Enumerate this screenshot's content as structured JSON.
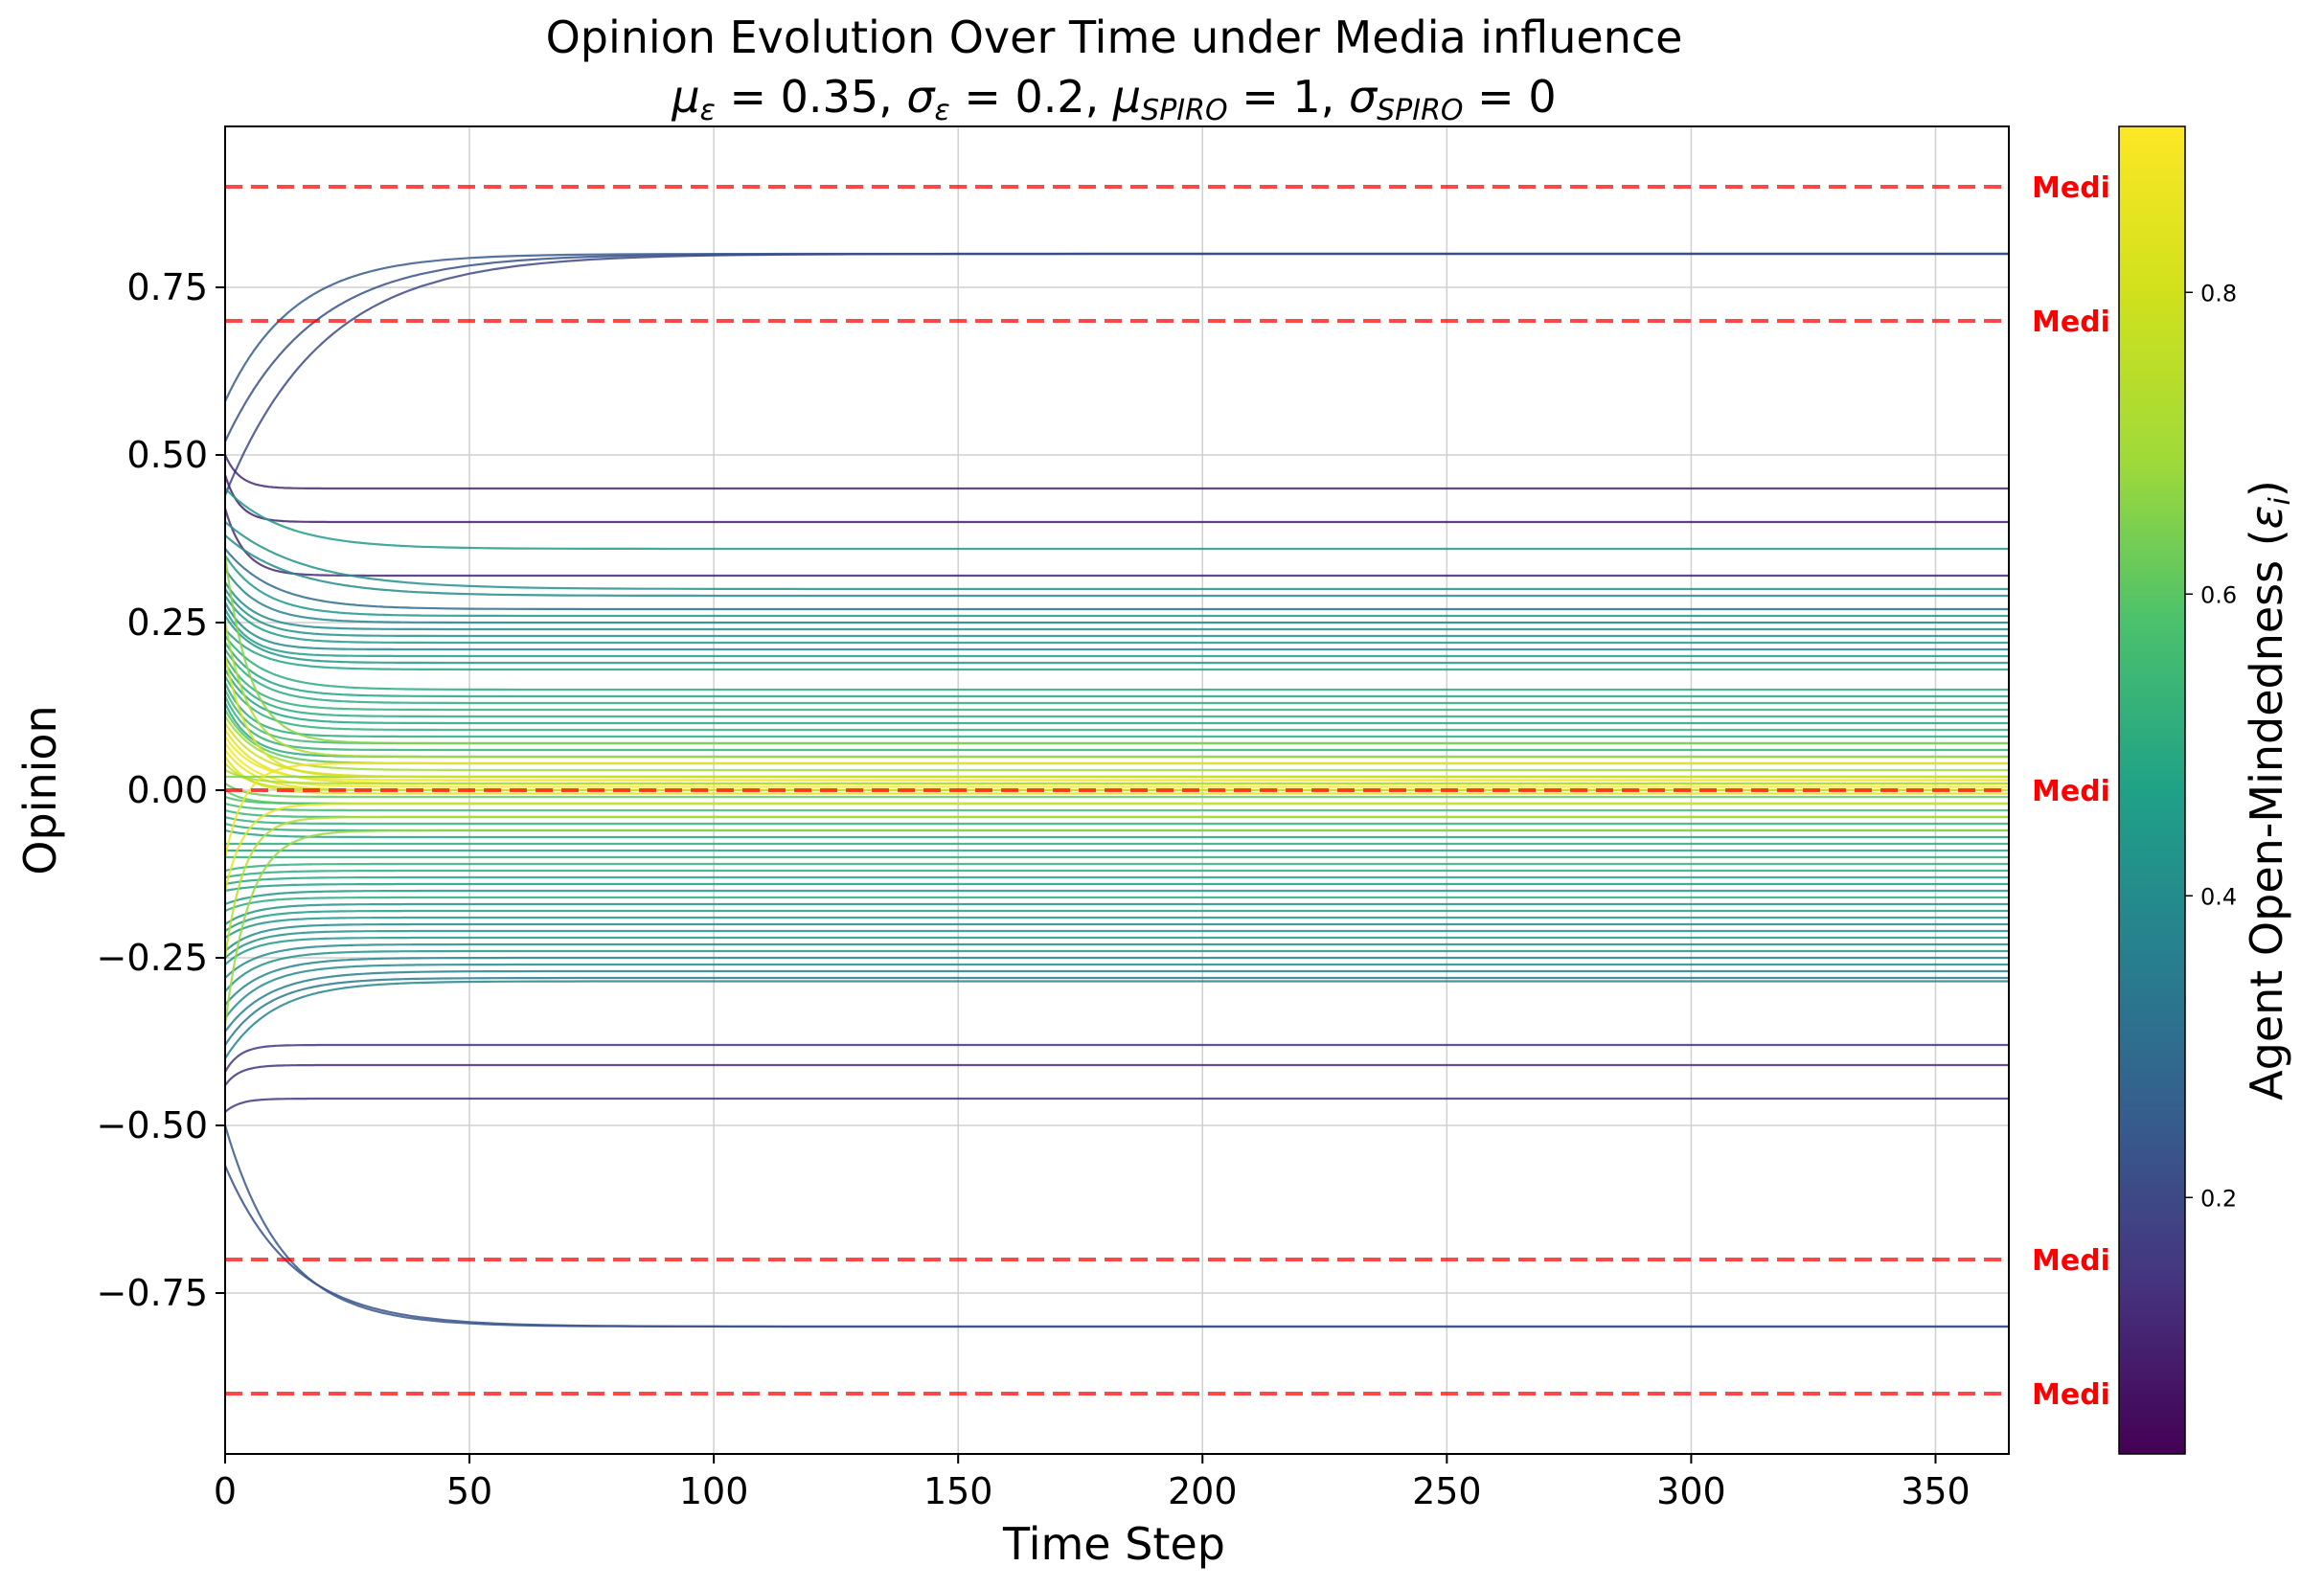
{
  "chart_data": {
    "type": "line",
    "title": "Opinion Evolution Over Time under Media influence",
    "subtitle": {
      "mu_eps_sym": "μ",
      "mu_eps_sub": "ε",
      "mu_eps_val": " = 0.35, ",
      "sigma_eps_sym": "σ",
      "sigma_eps_sub": "ε",
      "sigma_eps_val": " = 0.2, ",
      "mu_spiro_sym": "μ",
      "mu_spiro_sub": "SPIRO",
      "mu_spiro_val": " = 1, ",
      "sigma_spiro_sym": "σ",
      "sigma_spiro_sub": "SPIRO",
      "sigma_spiro_val": " = 0"
    },
    "xlabel": "Time Step",
    "ylabel": "Opinion",
    "xlim": [
      0,
      365
    ],
    "ylim": [
      -0.99,
      0.99
    ],
    "xticks": [
      0,
      50,
      100,
      150,
      200,
      250,
      300,
      350
    ],
    "yticks": [
      -0.75,
      -0.5,
      -0.25,
      0.0,
      0.25,
      0.5,
      0.75
    ],
    "ytick_labels": [
      "−0.75",
      "−0.50",
      "−0.25",
      "0.00",
      "0.25",
      "0.50",
      "0.75"
    ],
    "grid": true,
    "media_lines": [
      {
        "y": 0.9,
        "label": "Medi"
      },
      {
        "y": 0.7,
        "label": "Medi"
      },
      {
        "y": 0.0,
        "label": "Medi"
      },
      {
        "y": -0.7,
        "label": "Medi"
      },
      {
        "y": -0.9,
        "label": "Medi"
      }
    ],
    "media_color": "#ff0000",
    "colorbar": {
      "label_main": "Agent Open-Mindedness (",
      "label_sym": "ε",
      "label_sub": "i",
      "label_close": ")",
      "range": [
        0.03,
        0.91
      ],
      "ticks": [
        0.2,
        0.4,
        0.6,
        0.8
      ],
      "tick_labels": [
        "0.2",
        "0.4",
        "0.6",
        "0.8"
      ],
      "colormap": "viridis"
    },
    "series": [
      {
        "start": 0.52,
        "final": 0.8,
        "eps": 0.22,
        "tau": 18
      },
      {
        "start": 0.58,
        "final": 0.8,
        "eps": 0.25,
        "tau": 14
      },
      {
        "start": 0.44,
        "final": 0.8,
        "eps": 0.2,
        "tau": 20
      },
      {
        "start": 0.5,
        "final": 0.45,
        "eps": 0.12,
        "tau": 3
      },
      {
        "start": 0.47,
        "final": 0.4,
        "eps": 0.1,
        "tau": 3
      },
      {
        "start": 0.45,
        "final": 0.36,
        "eps": 0.45,
        "tau": 12
      },
      {
        "start": 0.42,
        "final": 0.32,
        "eps": 0.12,
        "tau": 4
      },
      {
        "start": 0.4,
        "final": 0.3,
        "eps": 0.42,
        "tau": 16
      },
      {
        "start": 0.38,
        "final": 0.29,
        "eps": 0.4,
        "tau": 14
      },
      {
        "start": 0.36,
        "final": 0.27,
        "eps": 0.3,
        "tau": 10
      },
      {
        "start": 0.35,
        "final": 0.26,
        "eps": 0.44,
        "tau": 8
      },
      {
        "start": 0.33,
        "final": 0.25,
        "eps": 0.38,
        "tau": 7
      },
      {
        "start": 0.31,
        "final": 0.24,
        "eps": 0.4,
        "tau": 6
      },
      {
        "start": 0.3,
        "final": 0.23,
        "eps": 0.42,
        "tau": 6
      },
      {
        "start": 0.29,
        "final": 0.22,
        "eps": 0.45,
        "tau": 6
      },
      {
        "start": 0.28,
        "final": 0.21,
        "eps": 0.4,
        "tau": 5
      },
      {
        "start": 0.27,
        "final": 0.2,
        "eps": 0.46,
        "tau": 5
      },
      {
        "start": 0.26,
        "final": 0.19,
        "eps": 0.44,
        "tau": 6
      },
      {
        "start": 0.24,
        "final": 0.18,
        "eps": 0.48,
        "tau": 7
      },
      {
        "start": 0.23,
        "final": 0.15,
        "eps": 0.5,
        "tau": 8
      },
      {
        "start": 0.22,
        "final": 0.14,
        "eps": 0.48,
        "tau": 7
      },
      {
        "start": 0.21,
        "final": 0.13,
        "eps": 0.5,
        "tau": 7
      },
      {
        "start": 0.2,
        "final": 0.12,
        "eps": 0.52,
        "tau": 6
      },
      {
        "start": 0.19,
        "final": 0.11,
        "eps": 0.5,
        "tau": 6
      },
      {
        "start": 0.18,
        "final": 0.1,
        "eps": 0.48,
        "tau": 6
      },
      {
        "start": 0.17,
        "final": 0.09,
        "eps": 0.52,
        "tau": 6
      },
      {
        "start": 0.16,
        "final": 0.08,
        "eps": 0.5,
        "tau": 5
      },
      {
        "start": 0.15,
        "final": 0.07,
        "eps": 0.55,
        "tau": 5
      },
      {
        "start": 0.14,
        "final": 0.06,
        "eps": 0.52,
        "tau": 5
      },
      {
        "start": 0.13,
        "final": 0.05,
        "eps": 0.5,
        "tau": 5
      },
      {
        "start": 0.12,
        "final": 0.04,
        "eps": 0.6,
        "tau": 6
      },
      {
        "start": 0.11,
        "final": 0.03,
        "eps": 0.7,
        "tau": 7
      },
      {
        "start": 0.1,
        "final": 0.02,
        "eps": 0.8,
        "tau": 7
      },
      {
        "start": 0.09,
        "final": 0.01,
        "eps": 0.85,
        "tau": 7
      },
      {
        "start": 0.08,
        "final": 0.015,
        "eps": 0.88,
        "tau": 6
      },
      {
        "start": 0.07,
        "final": 0.005,
        "eps": 0.9,
        "tau": 6
      },
      {
        "start": 0.06,
        "final": 0.0,
        "eps": 0.86,
        "tau": 6
      },
      {
        "start": 0.05,
        "final": -0.005,
        "eps": 0.84,
        "tau": 5
      },
      {
        "start": 0.04,
        "final": 0.0,
        "eps": 0.78,
        "tau": 5
      },
      {
        "start": 0.03,
        "final": 0.01,
        "eps": 0.72,
        "tau": 5
      },
      {
        "start": 0.02,
        "final": 0.02,
        "eps": 0.65,
        "tau": 4
      },
      {
        "start": 0.01,
        "final": -0.01,
        "eps": 0.62,
        "tau": 4
      },
      {
        "start": 0.0,
        "final": -0.02,
        "eps": 0.6,
        "tau": 4
      },
      {
        "start": -0.01,
        "final": -0.02,
        "eps": 0.58,
        "tau": 4
      },
      {
        "start": -0.02,
        "final": -0.03,
        "eps": 0.56,
        "tau": 5
      },
      {
        "start": -0.03,
        "final": -0.04,
        "eps": 0.54,
        "tau": 5
      },
      {
        "start": -0.04,
        "final": -0.05,
        "eps": 0.52,
        "tau": 5
      },
      {
        "start": -0.05,
        "final": -0.06,
        "eps": 0.5,
        "tau": 5
      },
      {
        "start": -0.06,
        "final": -0.07,
        "eps": 0.48,
        "tau": 6
      },
      {
        "start": -0.08,
        "final": -0.08,
        "eps": 0.5,
        "tau": 6
      },
      {
        "start": -0.09,
        "final": -0.09,
        "eps": 0.48,
        "tau": 6
      },
      {
        "start": -0.1,
        "final": -0.1,
        "eps": 0.5,
        "tau": 6
      },
      {
        "start": -0.12,
        "final": -0.11,
        "eps": 0.52,
        "tau": 6
      },
      {
        "start": -0.13,
        "final": -0.12,
        "eps": 0.5,
        "tau": 7
      },
      {
        "start": -0.14,
        "final": -0.13,
        "eps": 0.48,
        "tau": 7
      },
      {
        "start": -0.15,
        "final": -0.14,
        "eps": 0.46,
        "tau": 7
      },
      {
        "start": -0.17,
        "final": -0.15,
        "eps": 0.44,
        "tau": 7
      },
      {
        "start": -0.18,
        "final": -0.16,
        "eps": 0.5,
        "tau": 6
      },
      {
        "start": -0.2,
        "final": -0.17,
        "eps": 0.42,
        "tau": 6
      },
      {
        "start": -0.21,
        "final": -0.18,
        "eps": 0.46,
        "tau": 6
      },
      {
        "start": -0.22,
        "final": -0.19,
        "eps": 0.44,
        "tau": 6
      },
      {
        "start": -0.24,
        "final": -0.2,
        "eps": 0.4,
        "tau": 6
      },
      {
        "start": -0.25,
        "final": -0.21,
        "eps": 0.42,
        "tau": 6
      },
      {
        "start": -0.26,
        "final": -0.22,
        "eps": 0.44,
        "tau": 6
      },
      {
        "start": -0.28,
        "final": -0.23,
        "eps": 0.4,
        "tau": 7
      },
      {
        "start": -0.3,
        "final": -0.24,
        "eps": 0.42,
        "tau": 7
      },
      {
        "start": -0.32,
        "final": -0.25,
        "eps": 0.38,
        "tau": 8
      },
      {
        "start": -0.34,
        "final": -0.26,
        "eps": 0.4,
        "tau": 8
      },
      {
        "start": -0.36,
        "final": -0.27,
        "eps": 0.36,
        "tau": 9
      },
      {
        "start": -0.38,
        "final": -0.28,
        "eps": 0.34,
        "tau": 9
      },
      {
        "start": -0.4,
        "final": -0.285,
        "eps": 0.38,
        "tau": 10
      },
      {
        "start": -0.42,
        "final": -0.38,
        "eps": 0.15,
        "tau": 3
      },
      {
        "start": -0.44,
        "final": -0.41,
        "eps": 0.14,
        "tau": 3
      },
      {
        "start": -0.48,
        "final": -0.46,
        "eps": 0.16,
        "tau": 3
      },
      {
        "start": -0.1,
        "final": 0.04,
        "eps": 0.88,
        "tau": 4
      },
      {
        "start": -0.15,
        "final": -0.02,
        "eps": 0.86,
        "tau": 4
      },
      {
        "start": 0.2,
        "final": 0.02,
        "eps": 0.82,
        "tau": 5
      },
      {
        "start": -0.25,
        "final": -0.04,
        "eps": 0.75,
        "tau": 4
      },
      {
        "start": 0.25,
        "final": 0.05,
        "eps": 0.72,
        "tau": 5
      },
      {
        "start": -0.35,
        "final": -0.06,
        "eps": 0.68,
        "tau": 5
      },
      {
        "start": 0.35,
        "final": 0.07,
        "eps": 0.66,
        "tau": 5
      },
      {
        "start": -0.5,
        "final": -0.8,
        "eps": 0.24,
        "tau": 12
      },
      {
        "start": -0.56,
        "final": -0.8,
        "eps": 0.22,
        "tau": 14
      }
    ]
  }
}
